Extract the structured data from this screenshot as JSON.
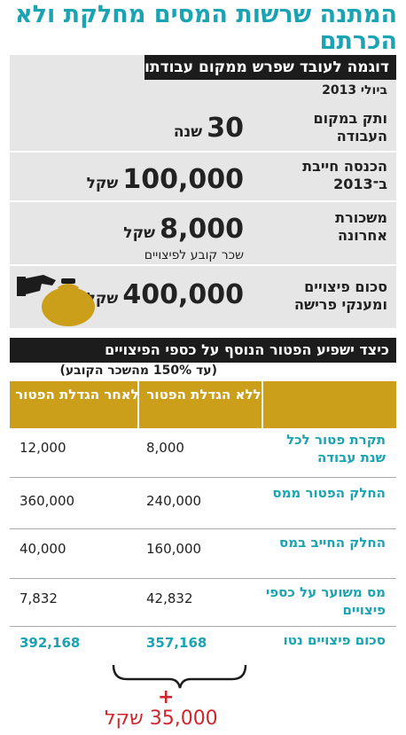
{
  "title": "המתנה שרשות המסים מחלקת ולא הכרתם",
  "example": {
    "heading": "דוגמה לעובד שפרש ממקום עבודתו",
    "date": "ביולי 2013",
    "rows": [
      {
        "label": "ותק במקום העבודה",
        "value": "30",
        "unit": "שנה"
      },
      {
        "label": "הכנסה חייבת ב־2013",
        "value": "100,000",
        "unit": "שקל"
      },
      {
        "label": "משכורת אחרונה",
        "value": "8,000",
        "unit": "שקל",
        "sub": "שכר קובע לפיצויים"
      },
      {
        "label": "סכום פיצויים ומענקי פרישה",
        "value": "400,000",
        "unit": "שקל"
      }
    ]
  },
  "table": {
    "heading": "כיצד ישפיע הפטור הנוסף על כספי הפיצויים",
    "note": "(עד 150% מהשכר הקובע)",
    "columns": [
      "",
      "ללא הגדלת הפטור",
      "לאחר הגדלת הפטור"
    ],
    "rows": [
      {
        "label": "תקרת פטור לכל שנת עבודה",
        "before": "8,000",
        "after": "12,000"
      },
      {
        "label": "החלק הפטור ממס",
        "before": "240,000",
        "after": "360,000"
      },
      {
        "label": "החלק החייב במס",
        "before": "160,000",
        "after": "40,000"
      },
      {
        "label": "מס משוער על כספי פיצויים",
        "before": "42,832",
        "after": "7,832"
      },
      {
        "label": "סכום פיצויים נטו",
        "before": "357,168",
        "after": "392,168"
      }
    ],
    "plus": "+",
    "difference": "35,000 שקל"
  },
  "colors": {
    "accent": "#1aa3b3",
    "gold": "#cc9f1a",
    "red": "#d0252d",
    "dark": "#1c1c1c",
    "panel": "#e6e6e6"
  },
  "icons": [
    "hand-money-bag-icon"
  ]
}
